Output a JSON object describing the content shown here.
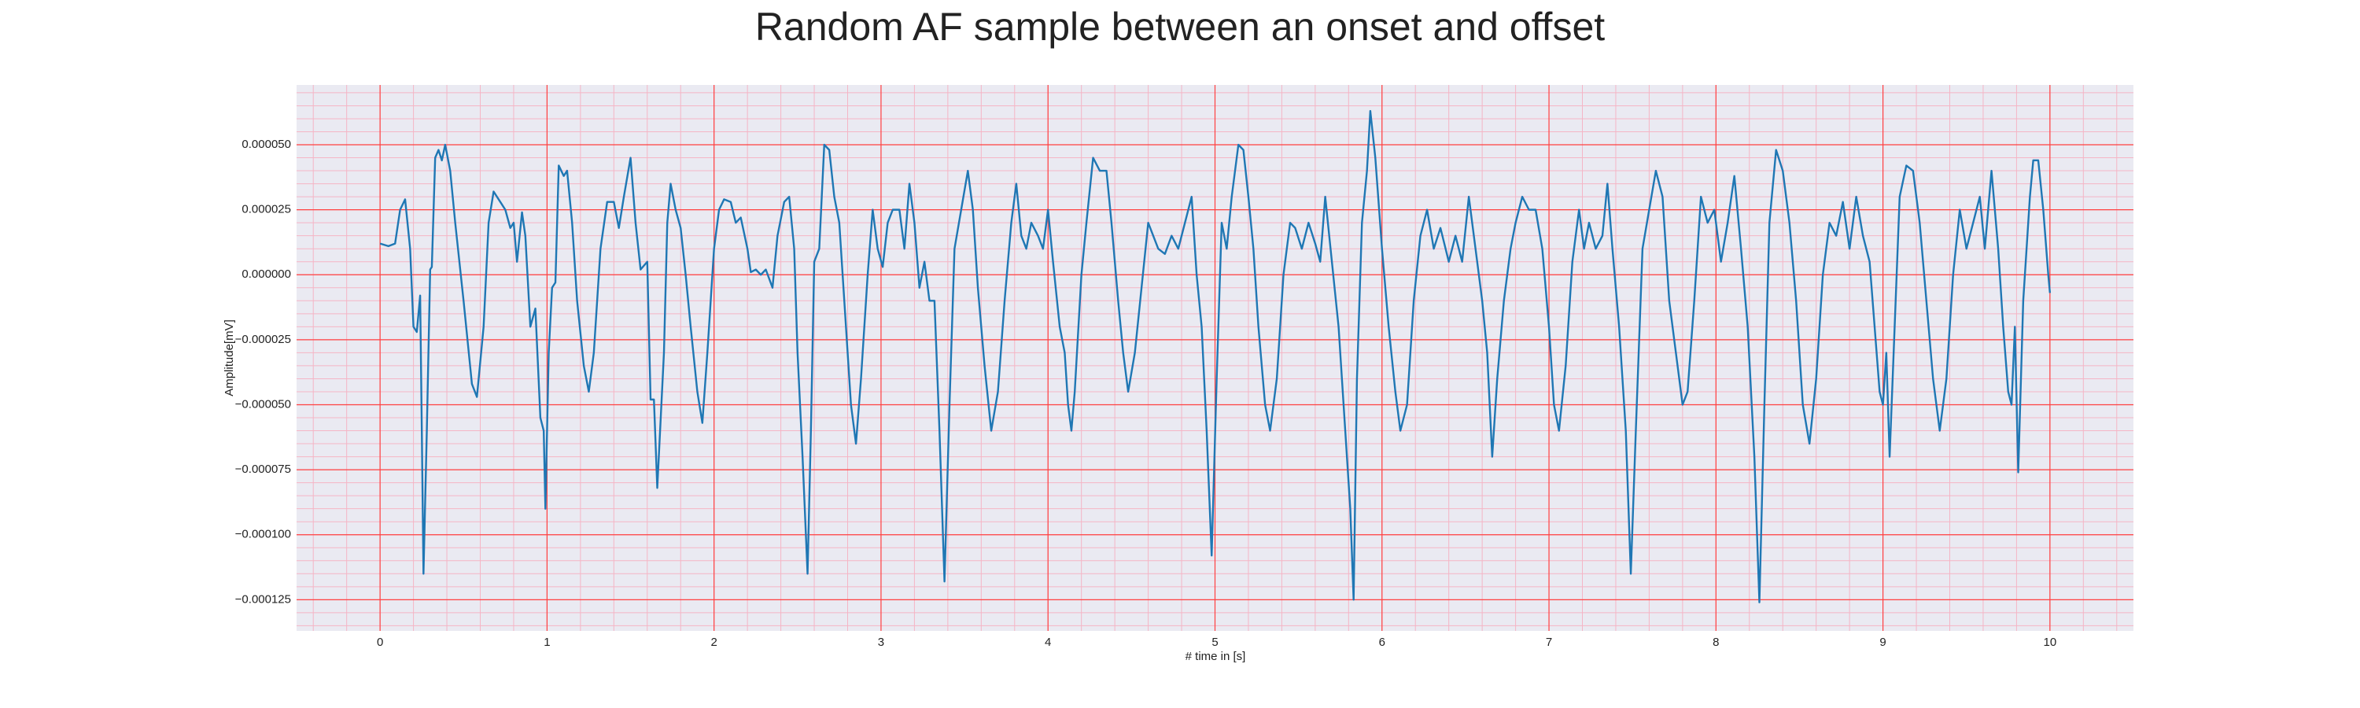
{
  "chart_data": {
    "type": "line",
    "title": "Random AF sample between an onset and offset",
    "x_label": "# time in [s]",
    "y_label": "Amplitude[mV]",
    "color": "#1f77b4",
    "grid": true,
    "xlim": [
      -0.5,
      10.5
    ],
    "ylim": [
      -0.000137,
      7.3e-05
    ],
    "xticks": [
      0,
      1,
      2,
      3,
      4,
      5,
      6,
      7,
      8,
      9,
      10
    ],
    "yticks": [
      {
        "value": -0.000125,
        "label": "−0.000125"
      },
      {
        "value": -0.0001,
        "label": "−0.000100"
      },
      {
        "value": -7.5e-05,
        "label": "−0.000075"
      },
      {
        "value": -5e-05,
        "label": "−0.000050"
      },
      {
        "value": -2.5e-05,
        "label": "−0.000025"
      },
      {
        "value": 0,
        "label": "0.000000"
      },
      {
        "value": 2.5e-05,
        "label": "0.000025"
      },
      {
        "value": 5e-05,
        "label": "0.000050"
      }
    ],
    "x": [
      0.0,
      0.05,
      0.09,
      0.12,
      0.15,
      0.18,
      0.2,
      0.22,
      0.24,
      0.25,
      0.26,
      0.28,
      0.3,
      0.31,
      0.33,
      0.35,
      0.37,
      0.39,
      0.42,
      0.45,
      0.5,
      0.55,
      0.58,
      0.62,
      0.65,
      0.68,
      0.72,
      0.75,
      0.78,
      0.8,
      0.82,
      0.85,
      0.87,
      0.9,
      0.93,
      0.96,
      0.98,
      0.99,
      1.01,
      1.03,
      1.05,
      1.07,
      1.1,
      1.12,
      1.15,
      1.18,
      1.22,
      1.25,
      1.28,
      1.32,
      1.36,
      1.4,
      1.43,
      1.46,
      1.5,
      1.53,
      1.56,
      1.6,
      1.62,
      1.64,
      1.66,
      1.7,
      1.72,
      1.74,
      1.77,
      1.8,
      1.83,
      1.86,
      1.9,
      1.93,
      1.96,
      2.0,
      2.03,
      2.06,
      2.1,
      2.13,
      2.16,
      2.2,
      2.22,
      2.25,
      2.28,
      2.31,
      2.35,
      2.38,
      2.42,
      2.45,
      2.48,
      2.5,
      2.53,
      2.56,
      2.58,
      2.6,
      2.63,
      2.66,
      2.69,
      2.72,
      2.75,
      2.78,
      2.82,
      2.85,
      2.88,
      2.92,
      2.95,
      2.98,
      3.01,
      3.04,
      3.07,
      3.11,
      3.14,
      3.17,
      3.2,
      3.23,
      3.26,
      3.29,
      3.32,
      3.35,
      3.38,
      3.41,
      3.44,
      3.48,
      3.52,
      3.55,
      3.58,
      3.62,
      3.66,
      3.7,
      3.74,
      3.78,
      3.81,
      3.84,
      3.87,
      3.9,
      3.94,
      3.97,
      4.0,
      4.03,
      4.07,
      4.1,
      4.12,
      4.14,
      4.16,
      4.2,
      4.23,
      4.27,
      4.31,
      4.35,
      4.38,
      4.42,
      4.45,
      4.48,
      4.52,
      4.56,
      4.6,
      4.63,
      4.66,
      4.7,
      4.74,
      4.78,
      4.82,
      4.86,
      4.89,
      4.92,
      4.95,
      4.98,
      5.01,
      5.04,
      5.07,
      5.1,
      5.14,
      5.17,
      5.2,
      5.23,
      5.26,
      5.3,
      5.33,
      5.37,
      5.41,
      5.45,
      5.48,
      5.52,
      5.56,
      5.6,
      5.63,
      5.66,
      5.7,
      5.74,
      5.78,
      5.81,
      5.83,
      5.85,
      5.88,
      5.91,
      5.93,
      5.96,
      6.0,
      6.04,
      6.08,
      6.11,
      6.15,
      6.19,
      6.23,
      6.27,
      6.31,
      6.35,
      6.4,
      6.44,
      6.48,
      6.52,
      6.56,
      6.6,
      6.63,
      6.66,
      6.69,
      6.73,
      6.77,
      6.8,
      6.84,
      6.88,
      6.92,
      6.96,
      7.0,
      7.03,
      7.06,
      7.1,
      7.14,
      7.18,
      7.21,
      7.24,
      7.28,
      7.32,
      7.35,
      7.38,
      7.42,
      7.46,
      7.49,
      7.52,
      7.56,
      7.6,
      7.64,
      7.68,
      7.72,
      7.76,
      7.8,
      7.83,
      7.87,
      7.91,
      7.95,
      7.99,
      8.03,
      8.07,
      8.11,
      8.15,
      8.19,
      8.23,
      8.26,
      8.29,
      8.32,
      8.36,
      8.4,
      8.44,
      8.48,
      8.52,
      8.56,
      8.6,
      8.64,
      8.68,
      8.72,
      8.76,
      8.8,
      8.84,
      8.88,
      8.92,
      8.95,
      8.98,
      9.0,
      9.02,
      9.04,
      9.07,
      9.1,
      9.14,
      9.18,
      9.22,
      9.26,
      9.3,
      9.34,
      9.38,
      9.42,
      9.46,
      9.5,
      9.54,
      9.58,
      9.61,
      9.65,
      9.69,
      9.72,
      9.75,
      9.77,
      9.79,
      9.81,
      9.84,
      9.88,
      9.9,
      9.93,
      9.96,
      9.99,
      10.0
    ],
    "values": [
      1.2e-05,
      1.1e-05,
      1.2e-05,
      2.5e-05,
      2.9e-05,
      1e-05,
      -2e-05,
      -2.2e-05,
      -8e-06,
      -6e-05,
      -0.000115,
      -6e-05,
      2e-06,
      3e-06,
      4.5e-05,
      4.8e-05,
      4.4e-05,
      5e-05,
      4e-05,
      2e-05,
      -1e-05,
      -4.2e-05,
      -4.7e-05,
      -2e-05,
      2e-05,
      3.2e-05,
      2.8e-05,
      2.5e-05,
      1.8e-05,
      2e-05,
      5e-06,
      2.4e-05,
      1.5e-05,
      -2e-05,
      -1.3e-05,
      -5.5e-05,
      -6e-05,
      -9e-05,
      -3e-05,
      -5e-06,
      -3e-06,
      4.2e-05,
      3.8e-05,
      4e-05,
      2e-05,
      -1e-05,
      -3.5e-05,
      -4.5e-05,
      -3e-05,
      1e-05,
      2.8e-05,
      2.8e-05,
      1.8e-05,
      3e-05,
      4.5e-05,
      2e-05,
      2e-06,
      5e-06,
      -4.8e-05,
      -4.8e-05,
      -8.2e-05,
      -3e-05,
      2e-05,
      3.5e-05,
      2.5e-05,
      1.8e-05,
      0,
      -2e-05,
      -4.5e-05,
      -5.7e-05,
      -3e-05,
      1e-05,
      2.5e-05,
      2.9e-05,
      2.8e-05,
      2e-05,
      2.2e-05,
      1e-05,
      1e-06,
      2e-06,
      0,
      2e-06,
      -5e-06,
      1.5e-05,
      2.8e-05,
      3e-05,
      1e-05,
      -3e-05,
      -7e-05,
      -0.000115,
      -6e-05,
      5e-06,
      1e-05,
      5e-05,
      4.8e-05,
      3e-05,
      2e-05,
      -1e-05,
      -5e-05,
      -6.5e-05,
      -4e-05,
      0,
      2.5e-05,
      1e-05,
      3e-06,
      2e-05,
      2.5e-05,
      2.5e-05,
      1e-05,
      3.5e-05,
      2e-05,
      -5e-06,
      5e-06,
      -1e-05,
      -1e-05,
      -6e-05,
      -0.000118,
      -5e-05,
      1e-05,
      2.5e-05,
      4e-05,
      2.5e-05,
      -5e-06,
      -3.5e-05,
      -6e-05,
      -4.5e-05,
      -1e-05,
      2e-05,
      3.5e-05,
      1.5e-05,
      1e-05,
      2e-05,
      1.5e-05,
      1e-05,
      2.5e-05,
      5e-06,
      -2e-05,
      -3e-05,
      -5e-05,
      -6e-05,
      -4.5e-05,
      0,
      2e-05,
      4.5e-05,
      4e-05,
      4e-05,
      2e-05,
      -1e-05,
      -3e-05,
      -4.5e-05,
      -3e-05,
      -5e-06,
      2e-05,
      1.5e-05,
      1e-05,
      8e-06,
      1.5e-05,
      1e-05,
      2e-05,
      3e-05,
      0,
      -2e-05,
      -6e-05,
      -0.000108,
      -4e-05,
      2e-05,
      1e-05,
      3e-05,
      5e-05,
      4.8e-05,
      3e-05,
      1e-05,
      -2e-05,
      -5e-05,
      -6e-05,
      -4e-05,
      0,
      2e-05,
      1.8e-05,
      1e-05,
      2e-05,
      1.2e-05,
      5e-06,
      3e-05,
      5e-06,
      -2e-05,
      -6e-05,
      -9e-05,
      -0.000125,
      -4e-05,
      2e-05,
      4e-05,
      6.3e-05,
      4.5e-05,
      1e-05,
      -2e-05,
      -4.5e-05,
      -6e-05,
      -5e-05,
      -1e-05,
      1.5e-05,
      2.5e-05,
      1e-05,
      1.8e-05,
      5e-06,
      1.5e-05,
      5e-06,
      3e-05,
      1e-05,
      -1e-05,
      -3e-05,
      -7e-05,
      -4e-05,
      -1e-05,
      1e-05,
      2e-05,
      3e-05,
      2.5e-05,
      2.5e-05,
      1e-05,
      -2e-05,
      -5e-05,
      -6e-05,
      -3.5e-05,
      5e-06,
      2.5e-05,
      1e-05,
      2e-05,
      1e-05,
      1.5e-05,
      3.5e-05,
      1e-05,
      -2e-05,
      -6e-05,
      -0.000115,
      -6e-05,
      1e-05,
      2.5e-05,
      4e-05,
      3e-05,
      -1e-05,
      -3e-05,
      -5e-05,
      -4.5e-05,
      -1e-05,
      3e-05,
      2e-05,
      2.5e-05,
      5e-06,
      2e-05,
      3.8e-05,
      1e-05,
      -2e-05,
      -7e-05,
      -0.000126,
      -5e-05,
      2e-05,
      4.8e-05,
      4e-05,
      2e-05,
      -1e-05,
      -5e-05,
      -6.5e-05,
      -4e-05,
      0,
      2e-05,
      1.5e-05,
      2.8e-05,
      1e-05,
      3e-05,
      1.5e-05,
      5e-06,
      -2e-05,
      -4.5e-05,
      -5e-05,
      -3e-05,
      -7e-05,
      -2e-05,
      3e-05,
      4.2e-05,
      4e-05,
      2e-05,
      -1e-05,
      -4e-05,
      -6e-05,
      -4e-05,
      0,
      2.5e-05,
      1e-05,
      2e-05,
      3e-05,
      1e-05,
      4e-05,
      1e-05,
      -2e-05,
      -4.5e-05,
      -5e-05,
      -2e-05,
      -7.6e-05,
      -1e-05,
      3e-05,
      4.4e-05,
      4.4e-05,
      2.5e-05,
      0,
      -7e-06
    ]
  }
}
